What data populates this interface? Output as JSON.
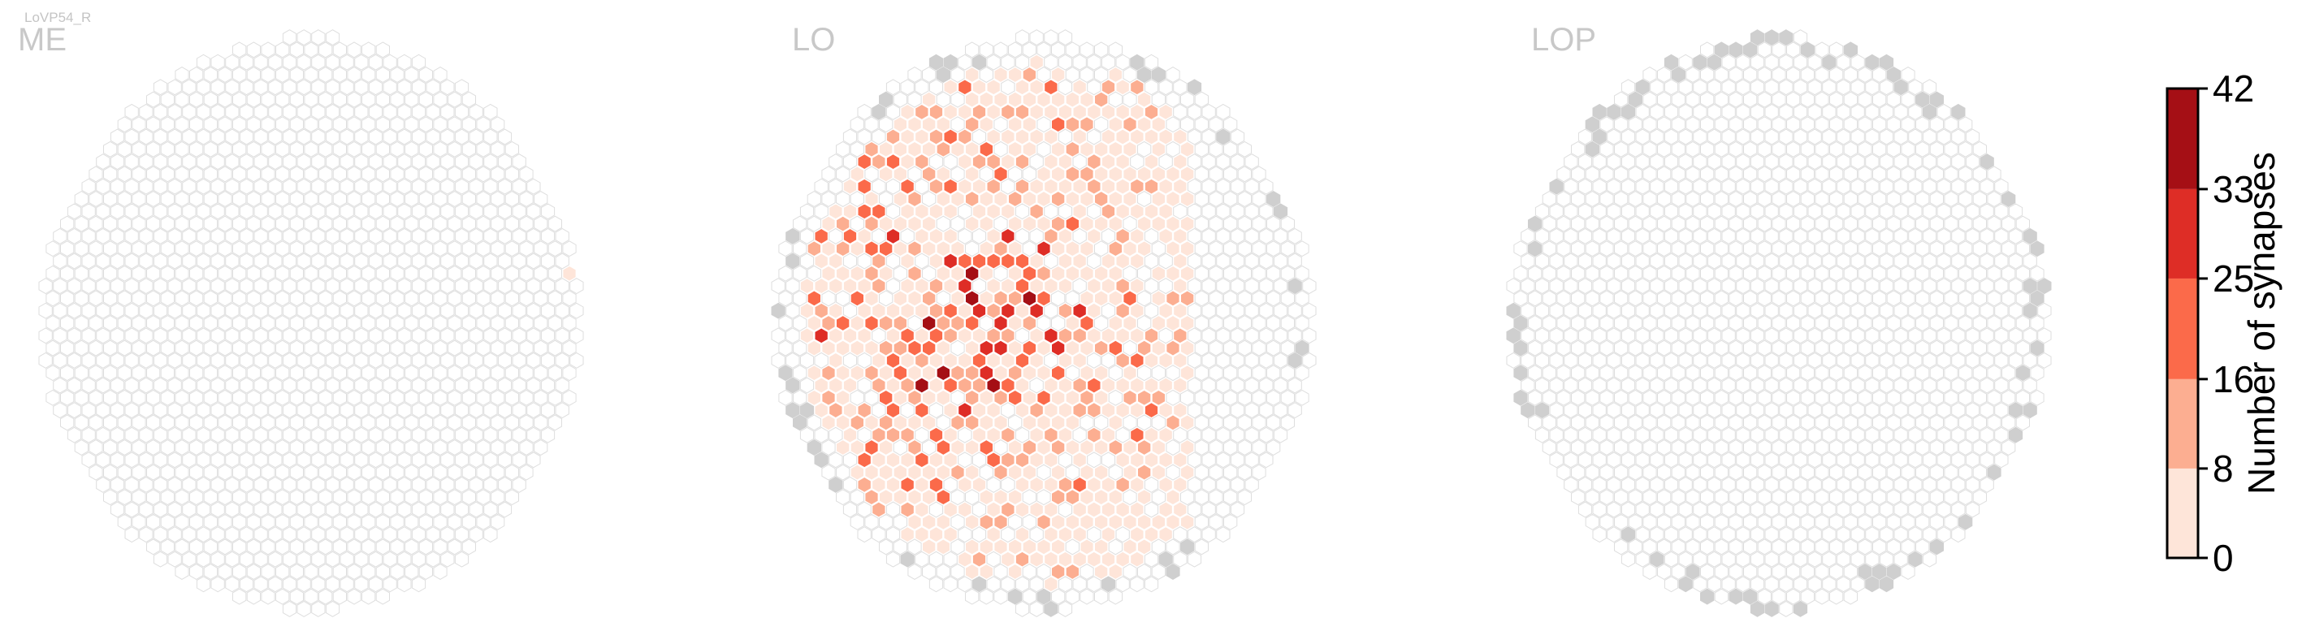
{
  "figure": {
    "neuron_label": "LoVP54_R",
    "panels": [
      {
        "id": "me",
        "label": "ME"
      },
      {
        "id": "lo",
        "label": "LO"
      },
      {
        "id": "lop",
        "label": "LOP"
      }
    ]
  },
  "chart_data": {
    "type": "heatmap",
    "description_of_grid": "hexagonal column maps of three optic-lobe neuropils; cell color encodes synapse count",
    "colorbar": {
      "label": "Number of synapses",
      "ticks": [
        0,
        8,
        16,
        25,
        33,
        42
      ],
      "range": [
        0,
        42
      ],
      "bins": [
        {
          "from": 0,
          "to": 8,
          "color": "#fee5d9"
        },
        {
          "from": 8,
          "to": 16,
          "color": "#fcae91"
        },
        {
          "from": 16,
          "to": 25,
          "color": "#fb6a4a"
        },
        {
          "from": 25,
          "to": 33,
          "color": "#de2d26"
        },
        {
          "from": 33,
          "to": 42,
          "color": "#a50f15"
        }
      ]
    },
    "colors": {
      "empty_column_edge": "#dedede",
      "out_of_range_column": "#cfcfcf"
    },
    "panels": [
      {
        "label": "ME",
        "max_value": 1,
        "nonzero_columns": 1
      },
      {
        "label": "LO",
        "max_value": 42,
        "nonzero_columns_approx": 330
      },
      {
        "label": "LOP",
        "max_value": 0,
        "nonzero_columns": 0
      }
    ]
  }
}
